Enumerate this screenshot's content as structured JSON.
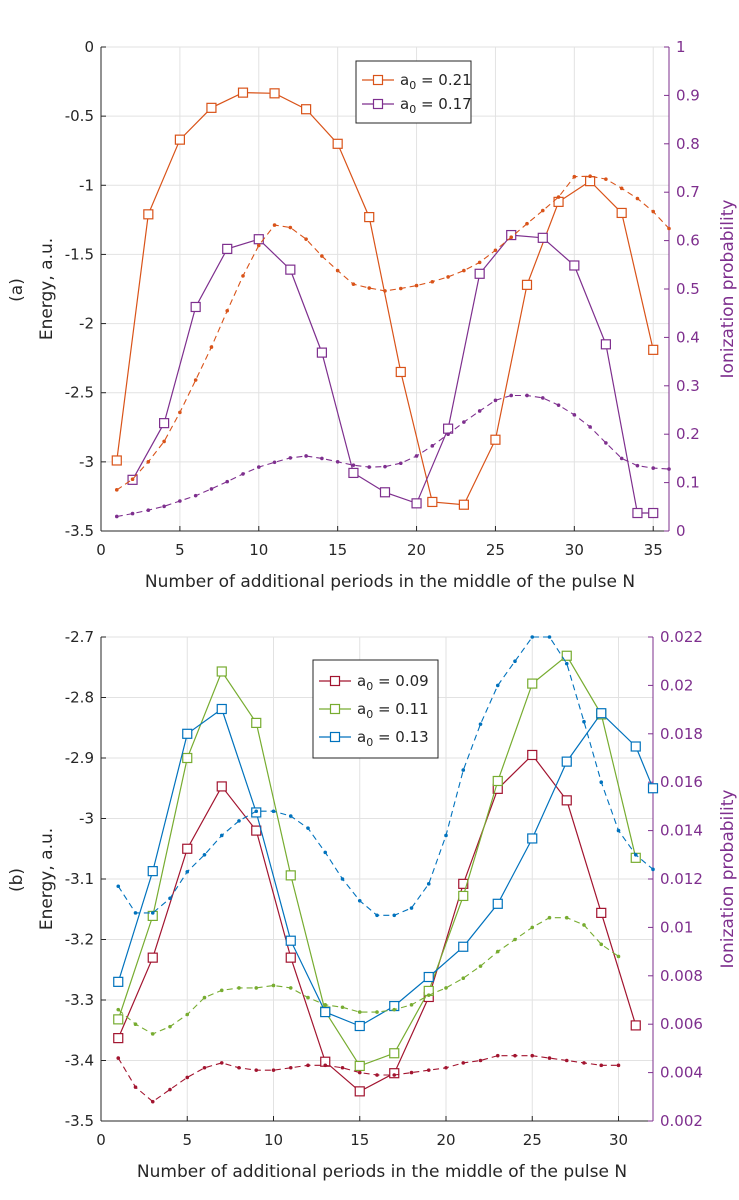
{
  "chart_data": [
    {
      "type": "line",
      "panel_label": "(a)",
      "xlabel": "Number of additional periods in the middle of the pulse N",
      "ylabel": "Energy, a.u.",
      "ylabel_right": "Ionization probability",
      "xlim": [
        0,
        36
      ],
      "ylim": [
        -3.5,
        0
      ],
      "ylim_right": [
        0,
        1
      ],
      "xticks": [
        0,
        5,
        10,
        15,
        20,
        25,
        30,
        35
      ],
      "yticks": [
        0,
        -0.5,
        -1,
        -1.5,
        -2,
        -2.5,
        -3,
        -3.5
      ],
      "yticks_right": [
        0,
        0.1,
        0.2,
        0.3,
        0.4,
        0.5,
        0.6,
        0.7,
        0.8,
        0.9,
        1
      ],
      "legend": [
        "a_0 = 0.21",
        "a_0 = 0.17"
      ],
      "legend_parts": [
        {
          "a": "a",
          "sub": "0",
          "rest": " = 0.21"
        },
        {
          "a": "a",
          "sub": "0",
          "rest": " = 0.17"
        }
      ],
      "legend_location": "top-center",
      "grid": true,
      "series": [
        {
          "name": "a_0 = 0.21",
          "axis": "left",
          "style": "solid-square",
          "color": "#D95319",
          "x": [
            1,
            3,
            5,
            7,
            9,
            11,
            13,
            15,
            17,
            19,
            21,
            23,
            25,
            27,
            29,
            31,
            33,
            35
          ],
          "y": [
            -2.99,
            -1.21,
            -0.67,
            -0.44,
            -0.33,
            -0.335,
            -0.45,
            -0.7,
            -1.23,
            -2.35,
            -3.29,
            -3.31,
            -2.84,
            -1.72,
            -1.12,
            -0.97,
            -1.2,
            -2.19
          ]
        },
        {
          "name": "a_0 = 0.17",
          "axis": "left",
          "style": "solid-square",
          "color": "#7E2F8E",
          "x": [
            2,
            4,
            6,
            8,
            10,
            12,
            14,
            16,
            18,
            20,
            22,
            24,
            26,
            28,
            30,
            32,
            34,
            35
          ],
          "y": [
            -3.13,
            -2.72,
            -1.88,
            -1.46,
            -1.39,
            -1.61,
            -2.21,
            -3.08,
            -3.22,
            -3.3,
            -2.76,
            -1.64,
            -1.36,
            -1.38,
            -1.58,
            -2.15,
            -3.37,
            -3.37
          ]
        },
        {
          "name": "ionization a_0 = 0.21",
          "axis": "right",
          "style": "dashed-dot",
          "color": "#D95319",
          "x": [
            1,
            2,
            3,
            4,
            5,
            6,
            7,
            8,
            9,
            10,
            11,
            12,
            13,
            14,
            15,
            16,
            17,
            18,
            19,
            20,
            21,
            22,
            23,
            24,
            25,
            26,
            27,
            28,
            29,
            30,
            31,
            32,
            33,
            34,
            35,
            36
          ],
          "y": [
            0.085,
            0.107,
            0.143,
            0.185,
            0.245,
            0.312,
            0.38,
            0.455,
            0.527,
            0.59,
            0.632,
            0.627,
            0.603,
            0.568,
            0.538,
            0.51,
            0.502,
            0.496,
            0.501,
            0.507,
            0.515,
            0.525,
            0.538,
            0.555,
            0.58,
            0.607,
            0.635,
            0.662,
            0.69,
            0.732,
            0.733,
            0.727,
            0.708,
            0.687,
            0.66,
            0.625
          ]
        },
        {
          "name": "ionization a_0 = 0.17",
          "axis": "right",
          "style": "dashed-dot",
          "color": "#7E2F8E",
          "x": [
            1,
            2,
            3,
            4,
            5,
            6,
            7,
            8,
            9,
            10,
            11,
            12,
            13,
            14,
            15,
            16,
            17,
            18,
            19,
            20,
            21,
            22,
            23,
            24,
            25,
            26,
            27,
            28,
            29,
            30,
            31,
            32,
            33,
            34,
            35,
            36
          ],
          "y": [
            0.03,
            0.036,
            0.043,
            0.051,
            0.062,
            0.073,
            0.087,
            0.102,
            0.118,
            0.132,
            0.142,
            0.151,
            0.155,
            0.15,
            0.143,
            0.136,
            0.132,
            0.133,
            0.14,
            0.155,
            0.176,
            0.2,
            0.225,
            0.248,
            0.27,
            0.28,
            0.28,
            0.275,
            0.26,
            0.24,
            0.215,
            0.182,
            0.15,
            0.135,
            0.13,
            0.128
          ]
        }
      ]
    },
    {
      "type": "line",
      "panel_label": "(b)",
      "xlabel": "Number of additional periods in the middle of the pulse N",
      "ylabel": "Energy, a.u.",
      "ylabel_right": "Ionization probability",
      "xlim": [
        0,
        32
      ],
      "ylim": [
        -3.5,
        -2.7
      ],
      "ylim_right": [
        0.002,
        0.022
      ],
      "xticks": [
        0,
        5,
        10,
        15,
        20,
        25,
        30
      ],
      "yticks": [
        -2.7,
        -2.8,
        -2.9,
        -3,
        -3.1,
        -3.2,
        -3.3,
        -3.4,
        -3.5
      ],
      "yticks_right": [
        0.022,
        0.02,
        0.018,
        0.016,
        0.014,
        0.012,
        0.01,
        0.008,
        0.006,
        0.004,
        0.002
      ],
      "legend": [
        "a_0 = 0.09",
        "a_0 = 0.11",
        "a_0 = 0.13"
      ],
      "legend_parts": [
        {
          "a": "a",
          "sub": "0",
          "rest": " = 0.09"
        },
        {
          "a": "a",
          "sub": "0",
          "rest": " = 0.11"
        },
        {
          "a": "a",
          "sub": "0",
          "rest": " = 0.13"
        }
      ],
      "legend_location": "top-center",
      "grid": true,
      "series": [
        {
          "name": "a_0 = 0.09",
          "axis": "left",
          "style": "solid-square",
          "color": "#A2142F",
          "x": [
            1,
            3,
            5,
            7,
            9,
            11,
            13,
            15,
            17,
            19,
            21,
            23,
            25,
            27,
            29,
            31
          ],
          "y": [
            -3.363,
            -3.23,
            -3.05,
            -2.947,
            -3.02,
            -3.23,
            -3.402,
            -3.451,
            -3.421,
            -3.295,
            -3.108,
            -2.951,
            -2.895,
            -2.97,
            -3.156,
            -3.342
          ]
        },
        {
          "name": "a_0 = 0.11",
          "axis": "left",
          "style": "solid-square",
          "color": "#77AC30",
          "x": [
            1,
            3,
            5,
            7,
            9,
            11,
            13,
            15,
            17,
            19,
            21,
            23,
            25,
            27,
            29,
            31
          ],
          "y": [
            -3.332,
            -3.161,
            -2.9,
            -2.757,
            -2.842,
            -3.094,
            -3.319,
            -3.409,
            -3.388,
            -3.285,
            -3.128,
            -2.938,
            -2.777,
            -2.731,
            -2.828,
            -3.065
          ]
        },
        {
          "name": "a_0 = 0.13",
          "axis": "left",
          "style": "solid-square",
          "color": "#0072BD",
          "x": [
            1,
            3,
            5,
            7,
            9,
            11,
            13,
            15,
            17,
            19,
            21,
            23,
            25,
            27,
            29,
            31,
            32
          ],
          "y": [
            -3.27,
            -3.087,
            -2.86,
            -2.819,
            -2.99,
            -3.202,
            -3.32,
            -3.343,
            -3.31,
            -3.262,
            -3.212,
            -3.141,
            -3.033,
            -2.906,
            -2.826,
            -2.881,
            -2.95
          ]
        },
        {
          "name": "ionization a_0 = 0.09",
          "axis": "right",
          "style": "dashed-dot",
          "color": "#A2142F",
          "x": [
            1,
            2,
            3,
            4,
            5,
            6,
            7,
            8,
            9,
            10,
            11,
            12,
            13,
            14,
            15,
            16,
            17,
            18,
            19,
            20,
            21,
            22,
            23,
            24,
            25,
            26,
            27,
            28,
            29,
            30
          ],
          "y": [
            0.0046,
            0.0034,
            0.0028,
            0.0033,
            0.0038,
            0.0042,
            0.0044,
            0.0042,
            0.0041,
            0.0041,
            0.0042,
            0.0043,
            0.0043,
            0.0042,
            0.004,
            0.0039,
            0.0039,
            0.004,
            0.0041,
            0.0042,
            0.0044,
            0.0045,
            0.0047,
            0.0047,
            0.0047,
            0.0046,
            0.0045,
            0.0044,
            0.0043,
            0.0043
          ]
        },
        {
          "name": "ionization a_0 = 0.11",
          "axis": "right",
          "style": "dashed-dot",
          "color": "#77AC30",
          "x": [
            1,
            2,
            3,
            4,
            5,
            6,
            7,
            8,
            9,
            10,
            11,
            12,
            13,
            14,
            15,
            16,
            17,
            18,
            19,
            20,
            21,
            22,
            23,
            24,
            25,
            26,
            27,
            28,
            29,
            30
          ],
          "y": [
            0.0066,
            0.006,
            0.0056,
            0.0059,
            0.0064,
            0.0071,
            0.0074,
            0.0075,
            0.0075,
            0.0076,
            0.0075,
            0.0071,
            0.0068,
            0.0067,
            0.0065,
            0.0065,
            0.0066,
            0.0068,
            0.0072,
            0.0075,
            0.0079,
            0.0084,
            0.009,
            0.0095,
            0.01,
            0.0104,
            0.0104,
            0.0101,
            0.0093,
            0.0088
          ]
        },
        {
          "name": "ionization a_0 = 0.13",
          "axis": "right",
          "style": "dashed-dot",
          "color": "#0072BD",
          "x": [
            1,
            2,
            3,
            4,
            5,
            6,
            7,
            8,
            9,
            10,
            11,
            12,
            13,
            14,
            15,
            16,
            17,
            18,
            19,
            20,
            21,
            22,
            23,
            24,
            25,
            26,
            27,
            28,
            29,
            30,
            31,
            32
          ],
          "y": [
            0.0117,
            0.0106,
            0.0106,
            0.0112,
            0.0123,
            0.013,
            0.0138,
            0.0144,
            0.0148,
            0.0148,
            0.0146,
            0.0141,
            0.0131,
            0.012,
            0.0111,
            0.0105,
            0.0105,
            0.0108,
            0.0118,
            0.0138,
            0.0165,
            0.0184,
            0.02,
            0.021,
            0.022,
            0.022,
            0.0209,
            0.0185,
            0.016,
            0.014,
            0.013,
            0.0124
          ]
        }
      ]
    }
  ]
}
